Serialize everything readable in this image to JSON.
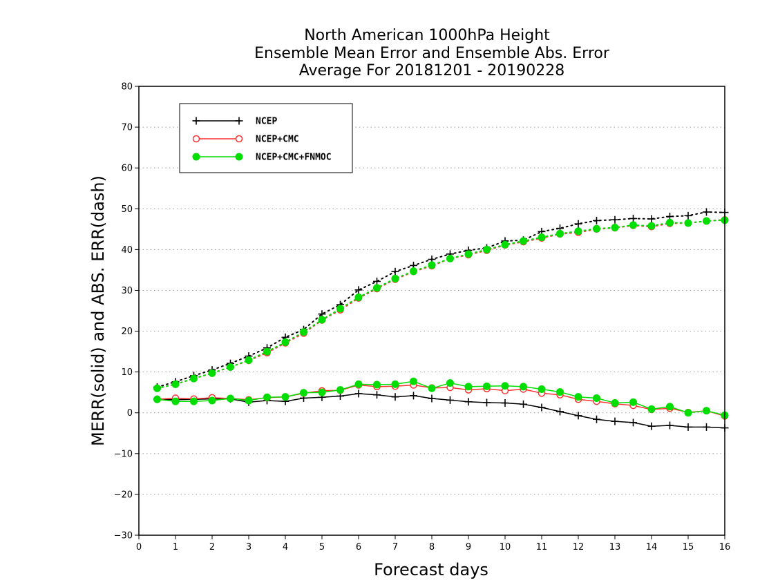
{
  "chart_data": {
    "type": "line",
    "title_lines": [
      "North American 1000hPa Height",
      "Ensemble Mean Error and Ensemble Abs. Error",
      "Average For 20181201 - 20190228"
    ],
    "xlabel": "Forecast days",
    "ylabel": "MERR(solid) and ABS. ERR(dash)",
    "xlim": [
      0,
      16
    ],
    "ylim": [
      -30,
      80
    ],
    "xticks": [
      0,
      1,
      2,
      3,
      4,
      5,
      6,
      7,
      8,
      9,
      10,
      11,
      12,
      13,
      14,
      15,
      16
    ],
    "yticks": [
      -30,
      -20,
      -10,
      0,
      10,
      20,
      30,
      40,
      50,
      60,
      70,
      80
    ],
    "grid": "horizontal dotted",
    "legend_position": "top-left",
    "x": [
      0.5,
      1,
      1.5,
      2,
      2.5,
      3,
      3.5,
      4,
      4.5,
      5,
      5.5,
      6,
      6.5,
      7,
      7.5,
      8,
      8.5,
      9,
      9.5,
      10,
      10.5,
      11,
      11.5,
      12,
      12.5,
      13,
      13.5,
      14,
      14.5,
      15,
      15.5,
      16
    ],
    "series": [
      {
        "name": "NCEP",
        "kind": "MERR",
        "color": "#000000",
        "marker": "plus",
        "line": "solid",
        "values": [
          3.3,
          3.2,
          3.3,
          3.4,
          3.4,
          2.6,
          3.0,
          2.8,
          3.6,
          3.8,
          4.1,
          4.7,
          4.4,
          3.9,
          4.2,
          3.5,
          3.1,
          2.7,
          2.5,
          2.4,
          2.1,
          1.3,
          0.3,
          -0.7,
          -1.6,
          -2.1,
          -2.4,
          -3.3,
          -3.1,
          -3.5,
          -3.5,
          -3.7
        ]
      },
      {
        "name": "NCEP+CMC",
        "kind": "MERR",
        "color": "#ff3030",
        "marker": "open-circle",
        "line": "solid",
        "values": [
          3.3,
          3.6,
          3.4,
          3.7,
          3.5,
          3.2,
          3.7,
          3.9,
          4.8,
          5.4,
          5.5,
          6.8,
          6.4,
          6.5,
          6.8,
          6.1,
          6.2,
          5.6,
          5.9,
          5.4,
          5.8,
          4.8,
          4.4,
          3.3,
          2.8,
          2.2,
          1.8,
          0.8,
          1.1,
          0.1,
          0.5,
          -0.8
        ]
      },
      {
        "name": "NCEP+CMC+FNMOC",
        "kind": "MERR",
        "color": "#00dd00",
        "marker": "filled-circle",
        "line": "solid",
        "values": [
          3.3,
          2.8,
          2.8,
          3.0,
          3.5,
          3.0,
          3.8,
          3.9,
          4.9,
          5.0,
          5.6,
          7.0,
          6.9,
          7.0,
          7.7,
          6.0,
          7.3,
          6.4,
          6.5,
          6.6,
          6.4,
          5.8,
          5.1,
          3.9,
          3.6,
          2.4,
          2.6,
          0.9,
          1.5,
          0.0,
          0.5,
          -0.6
        ]
      },
      {
        "name": "NCEP",
        "kind": "ABS. ERR",
        "color": "#000000",
        "marker": "plus",
        "line": "dotted",
        "values": [
          6.3,
          7.6,
          9.1,
          10.5,
          12.1,
          13.9,
          15.9,
          18.5,
          20.4,
          24.2,
          26.5,
          30.1,
          32.2,
          34.6,
          36.1,
          37.6,
          38.9,
          39.8,
          40.4,
          42.1,
          42.3,
          44.4,
          45.2,
          46.3,
          47.1,
          47.3,
          47.6,
          47.5,
          48.1,
          48.3,
          49.2,
          49.1
        ]
      },
      {
        "name": "NCEP+CMC",
        "kind": "ABS. ERR",
        "color": "#ff3030",
        "marker": "open-circle",
        "line": "dotted",
        "values": [
          6.0,
          7.0,
          8.4,
          9.7,
          11.2,
          12.8,
          14.7,
          17.1,
          19.5,
          22.7,
          25.2,
          28.1,
          30.4,
          32.7,
          34.6,
          36.0,
          37.8,
          38.7,
          39.8,
          41.1,
          41.9,
          42.8,
          43.8,
          44.2,
          45.0,
          45.3,
          45.9,
          45.6,
          46.4,
          46.5,
          47.0,
          47.3
        ]
      },
      {
        "name": "NCEP+CMC+FNMOC",
        "kind": "ABS. ERR",
        "color": "#00dd00",
        "marker": "filled-circle",
        "line": "dotted",
        "values": [
          6.0,
          7.0,
          8.4,
          9.7,
          11.2,
          12.9,
          15.0,
          17.3,
          19.8,
          22.8,
          25.5,
          28.3,
          30.6,
          32.9,
          34.7,
          36.2,
          37.8,
          38.9,
          40.0,
          41.2,
          42.1,
          43.0,
          43.9,
          44.5,
          45.1,
          45.4,
          46.0,
          45.8,
          46.6,
          46.5,
          47.0,
          47.2
        ]
      }
    ],
    "legend": [
      {
        "label": "NCEP",
        "color": "#000000",
        "marker": "plus"
      },
      {
        "label": "NCEP+CMC",
        "color": "#ff3030",
        "marker": "open-circle"
      },
      {
        "label": "NCEP+CMC+FNMOC",
        "color": "#00dd00",
        "marker": "filled-circle"
      }
    ]
  }
}
